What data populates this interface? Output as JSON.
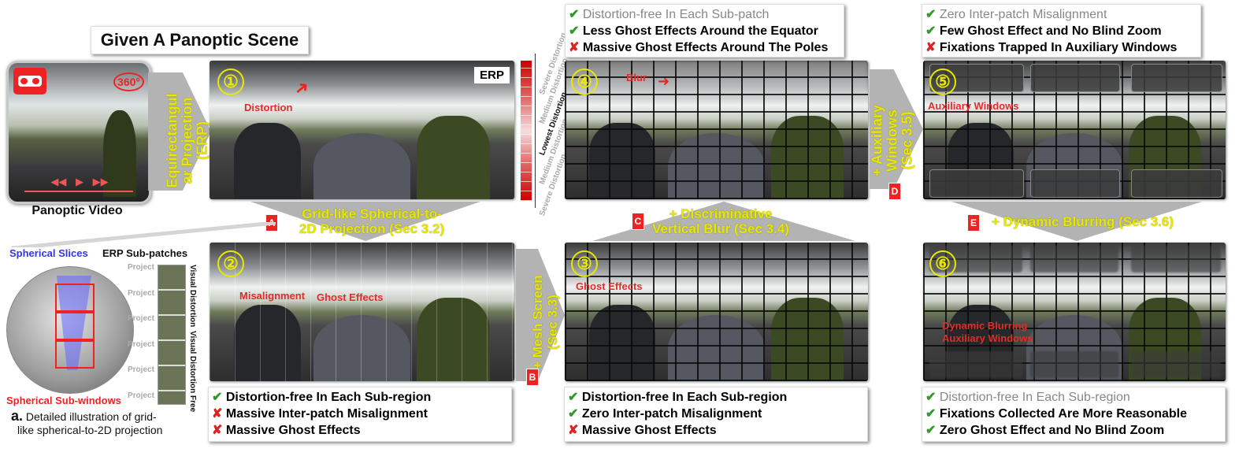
{
  "title": "Given A Panoptic Scene",
  "video_caption": "Panoptic Video",
  "vr_badge": "360°",
  "erp_tag": "ERP",
  "panel_numbers": [
    "①",
    "②",
    "③",
    "④",
    "⑤",
    "⑥"
  ],
  "panel_annotations": {
    "p1": [
      "Distortion"
    ],
    "p2": [
      "Misalignment",
      "Ghost Effects"
    ],
    "p3": [
      "Ghost Effects"
    ],
    "p4": [
      "Blur"
    ],
    "p5": [
      "Auxiliary Windows"
    ],
    "p6": [
      "Dynamic Blurring",
      "Auxiliary Windows"
    ]
  },
  "steps": {
    "erp": {
      "line1": "Equirectangul",
      "line2": "ar Projection",
      "line3": "(ERP)"
    },
    "a": {
      "badge": "A",
      "line1": "Grid-like Spherical-to-",
      "line2": "2D Projection (Sec 3.2)"
    },
    "b": {
      "badge": "B",
      "line1": "+ Mesh Screen",
      "line2": "(Sec 3.3)"
    },
    "c": {
      "badge": "C",
      "line1": "+ Discriminative",
      "line2": "Vertical Blur (Sec 3.4)"
    },
    "d": {
      "badge": "D",
      "line1": "+ Auxiliary",
      "line2": "Windows",
      "line3": "(Sec 3.5)"
    },
    "e": {
      "badge": "E",
      "line1": "+ Dynamic Blurring (Sec 3.6)"
    }
  },
  "distortion_scale": [
    "Severe Distortion",
    "Medium Distortion",
    "Lowest Distortion",
    "Medium Distortion",
    "Severe Distortion"
  ],
  "sphere_labels": {
    "slices": "Spherical Slices",
    "subpatches": "ERP Sub-patches",
    "subwindows": "Spherical Sub-windows",
    "project": "Project",
    "visual_distortion": "Visual Distortion",
    "visual_distortion_free": "Visual Distortion Free",
    "caption_letter": "a.",
    "caption_line1": "Detailed illustration of grid-",
    "caption_line2": "like spherical-to-2D  projection"
  },
  "box_p4": [
    {
      "mark": "✔",
      "status": "gray",
      "text": "Distortion-free In Each Sub-patch"
    },
    {
      "mark": "✔",
      "status": "ok",
      "text": "Less Ghost Effects Around the Equator"
    },
    {
      "mark": "✘",
      "status": "no",
      "text": "Massive Ghost Effects Around The Poles"
    }
  ],
  "box_p5": [
    {
      "mark": "✔",
      "status": "gray",
      "text": "Zero Inter-patch Misalignment"
    },
    {
      "mark": "✔",
      "status": "ok",
      "text": "Few Ghost Effect and No Blind Zoom"
    },
    {
      "mark": "✘",
      "status": "no",
      "text": "Fixations Trapped In Auxiliary Windows"
    }
  ],
  "box_p2": [
    {
      "mark": "✔",
      "status": "ok",
      "text": "Distortion-free In Each Sub-region"
    },
    {
      "mark": "✘",
      "status": "no",
      "text": "Massive Inter-patch Misalignment"
    },
    {
      "mark": "✘",
      "status": "no",
      "text": "Massive Ghost Effects"
    }
  ],
  "box_p3": [
    {
      "mark": "✔",
      "status": "ok",
      "text": "Distortion-free In Each Sub-region"
    },
    {
      "mark": "✔",
      "status": "ok",
      "text": "Zero Inter-patch Misalignment"
    },
    {
      "mark": "✘",
      "status": "no",
      "text": "Massive Ghost Effects"
    }
  ],
  "box_p6": [
    {
      "mark": "✔",
      "status": "gray",
      "text": "Distortion-free In Each Sub-region"
    },
    {
      "mark": "✔",
      "status": "ok",
      "text": "Fixations Collected Are More Reasonable"
    },
    {
      "mark": "✔",
      "status": "ok",
      "text": "Zero Ghost Effect and No Blind Zoom"
    }
  ],
  "colors": {
    "yellow": "#e8e800",
    "red": "#e22222",
    "green": "#2e9a2e",
    "arrow_gray": "#b3b3b3"
  }
}
